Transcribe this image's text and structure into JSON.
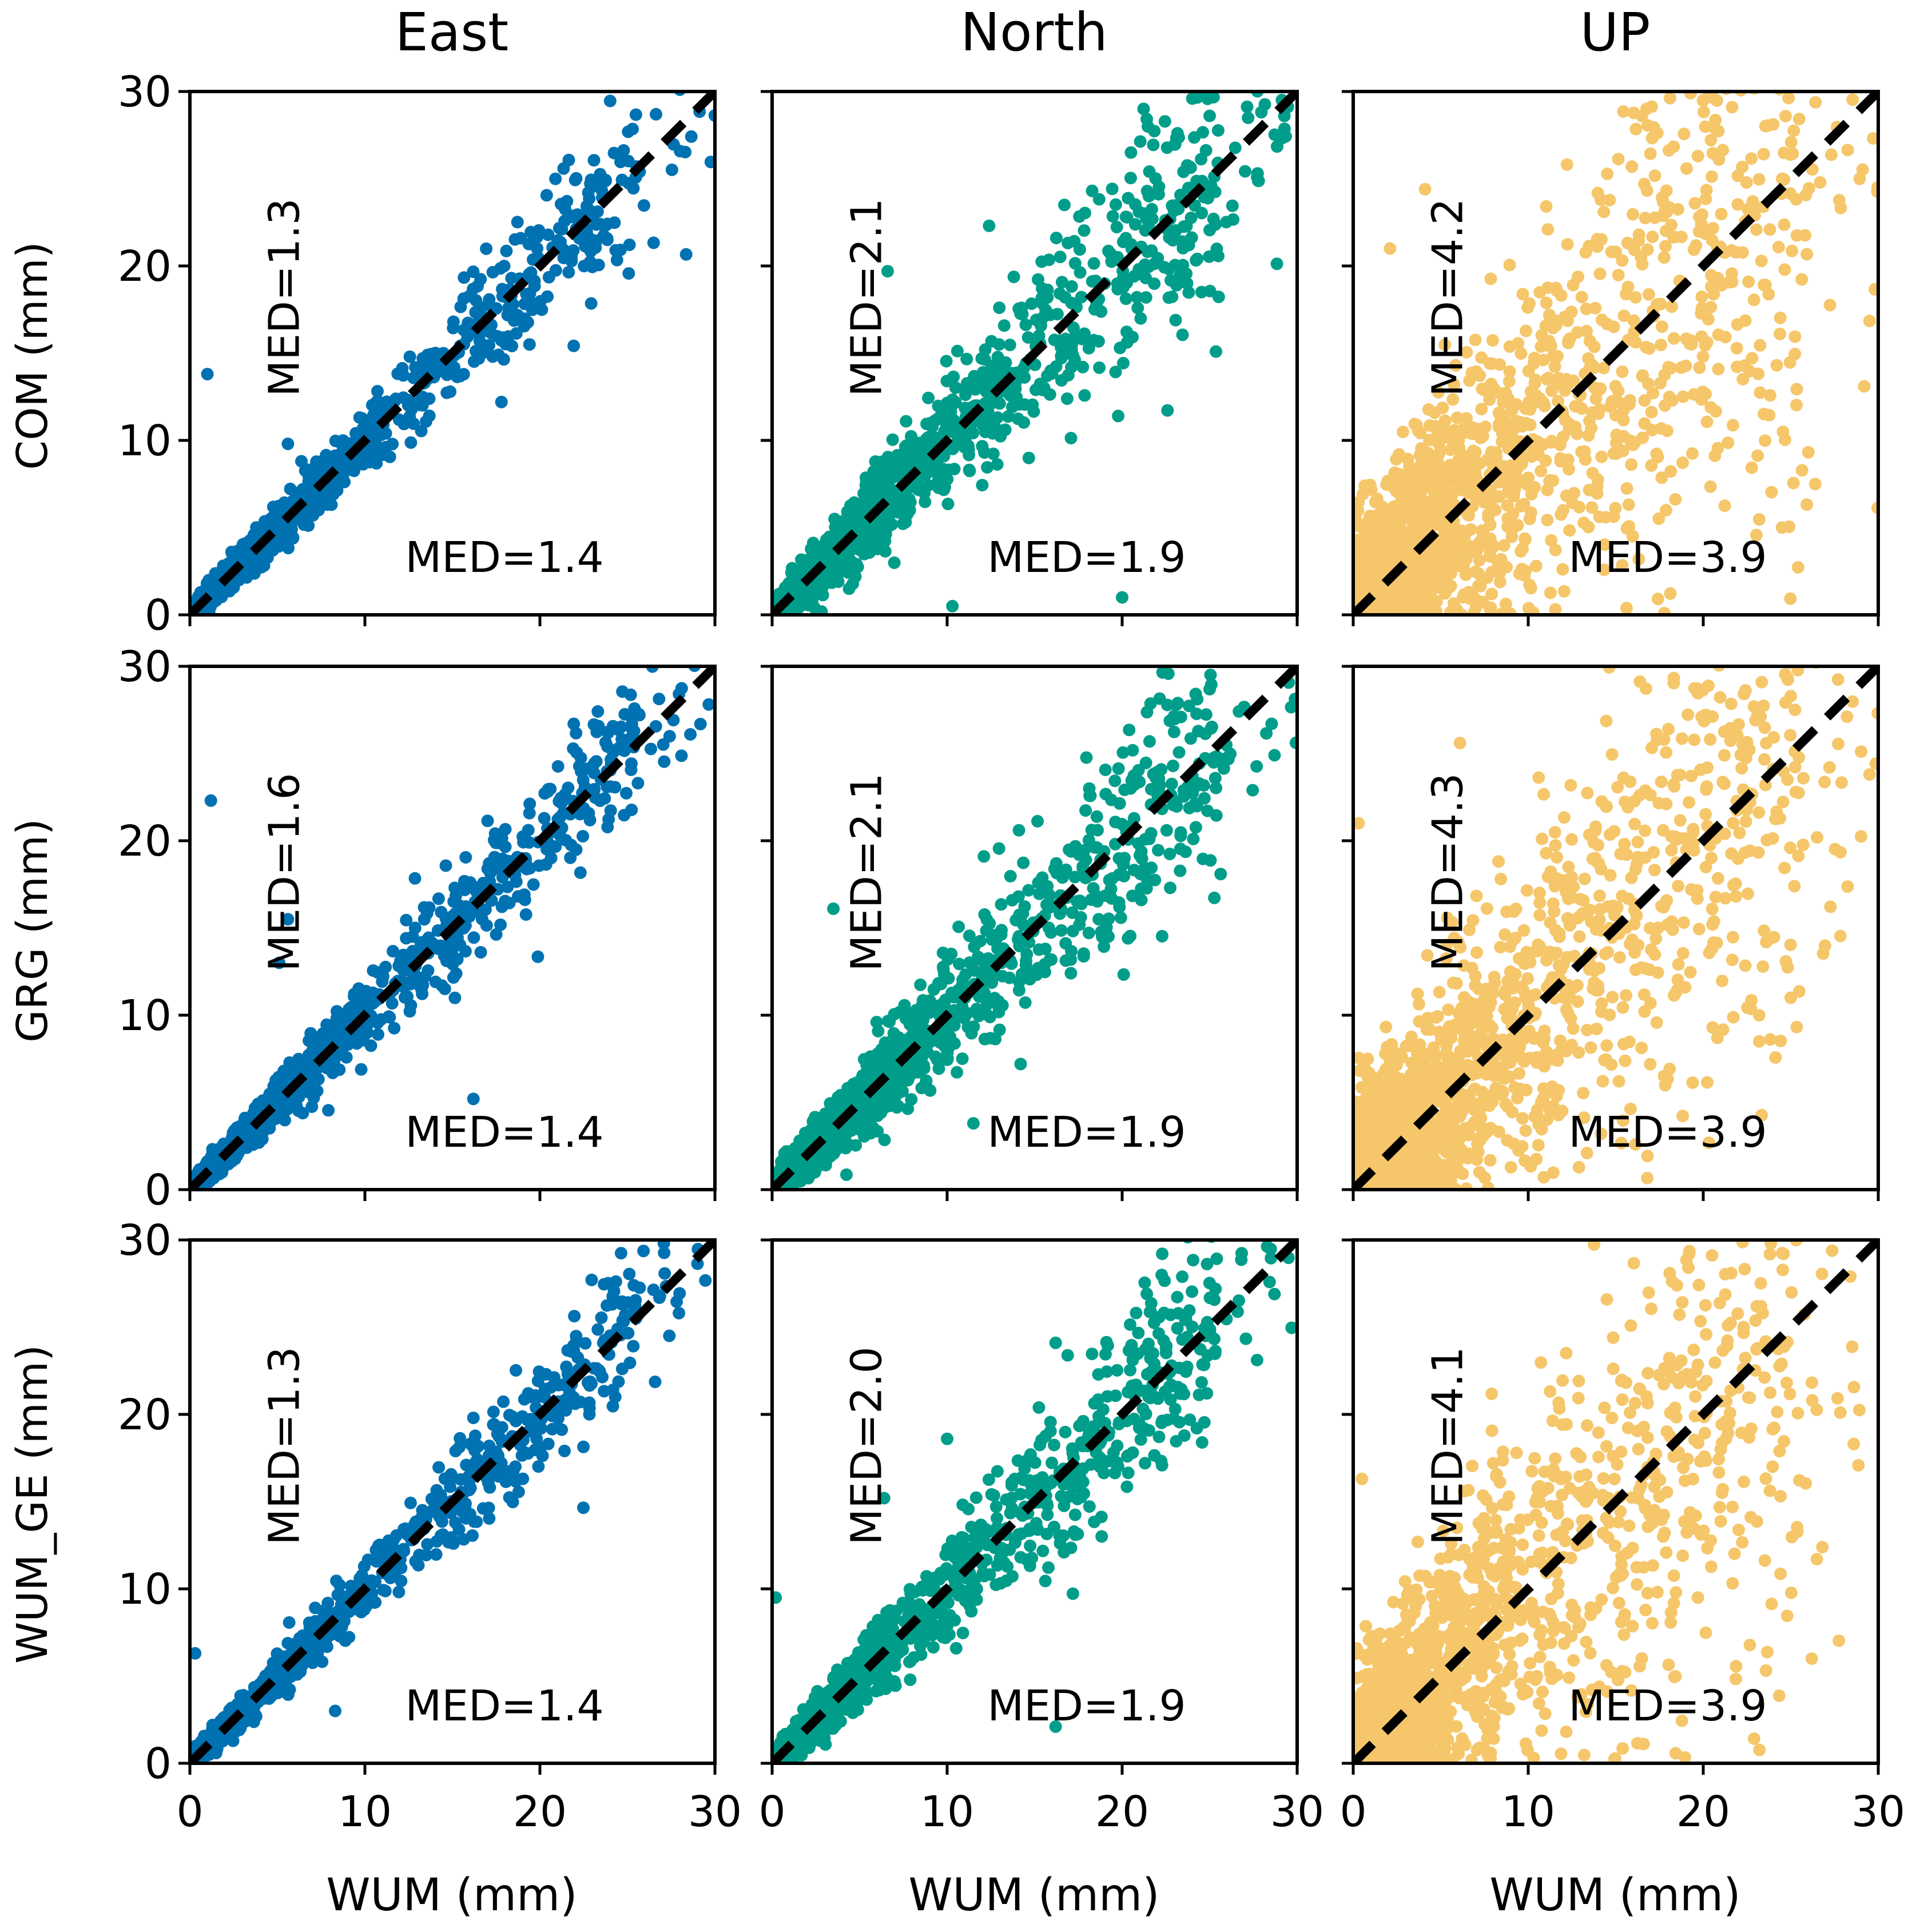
{
  "chart_data": {
    "type": "scatter",
    "layout": "3x3 grid",
    "columns": [
      {
        "title": "East",
        "color": "#0072b2"
      },
      {
        "title": "North",
        "color": "#009e8a"
      },
      {
        "title": "UP",
        "color": "#f5c76a"
      }
    ],
    "rows": [
      {
        "ylabel": "COM (mm)"
      },
      {
        "ylabel": "GRG (mm)"
      },
      {
        "ylabel": "WUM_GE (mm)"
      }
    ],
    "xlabel": "WUM (mm)",
    "xlim": [
      0,
      30
    ],
    "ylim": [
      0,
      30
    ],
    "ticks": [
      0,
      10,
      20,
      30
    ],
    "tick_labels": [
      "0",
      "10",
      "20",
      "30"
    ],
    "reference_line": {
      "slope": 1,
      "intercept": 0,
      "style": "dashed",
      "color": "#000000"
    },
    "panels": [
      {
        "row": 0,
        "col": 0,
        "med_vertical": "MED=1.3",
        "med_horizontal": "MED=1.4",
        "spread": 0.35,
        "scale": 2.6,
        "n": 1300,
        "outliers": [
          [
            1.0,
            13.8
          ],
          [
            25.7,
            25.4
          ],
          [
            21.8,
            20.6
          ],
          [
            5.6,
            9.8
          ],
          [
            17.8,
            12.2
          ]
        ]
      },
      {
        "row": 0,
        "col": 1,
        "med_vertical": "MED=2.1",
        "med_horizontal": "MED=1.9",
        "spread": 0.55,
        "scale": 3.0,
        "n": 1500,
        "outliers": [
          [
            12.4,
            22.3
          ],
          [
            16.7,
            23.5
          ],
          [
            6.6,
            19.7
          ],
          [
            20.0,
            1.0
          ],
          [
            10.3,
            0.5
          ]
        ]
      },
      {
        "row": 0,
        "col": 2,
        "med_vertical": "MED=4.2",
        "med_horizontal": "MED=3.9",
        "spread": 1.1,
        "scale": 3.2,
        "n": 1900,
        "outliers": [
          [
            29.2,
            13.1
          ],
          [
            26.4,
            7.5
          ],
          [
            2.1,
            21.0
          ],
          [
            4.1,
            24.4
          ],
          [
            24.5,
            5.0
          ]
        ]
      },
      {
        "row": 1,
        "col": 0,
        "med_vertical": "MED=1.6",
        "med_horizontal": "MED=1.4",
        "spread": 0.35,
        "scale": 2.6,
        "n": 1300,
        "outliers": [
          [
            1.2,
            22.3
          ],
          [
            25.6,
            23.3
          ],
          [
            5.6,
            15.5
          ],
          [
            16.2,
            5.2
          ],
          [
            5.1,
            13.0
          ]
        ]
      },
      {
        "row": 1,
        "col": 1,
        "med_vertical": "MED=2.1",
        "med_horizontal": "MED=1.9",
        "spread": 0.55,
        "scale": 3.0,
        "n": 1500,
        "outliers": [
          [
            12.1,
            19.1
          ],
          [
            14.1,
            20.6
          ],
          [
            3.5,
            16.1
          ],
          [
            14.2,
            7.2
          ],
          [
            11.5,
            3.8
          ]
        ]
      },
      {
        "row": 1,
        "col": 2,
        "med_vertical": "MED=4.3",
        "med_horizontal": "MED=3.9",
        "spread": 1.1,
        "scale": 3.2,
        "n": 1900,
        "outliers": [
          [
            29.5,
            23.8
          ],
          [
            25.0,
            11.0
          ],
          [
            6.1,
            25.6
          ],
          [
            0.3,
            21.0
          ],
          [
            23.2,
            8.5
          ]
        ]
      },
      {
        "row": 2,
        "col": 0,
        "med_vertical": "MED=1.3",
        "med_horizontal": "MED=1.4",
        "spread": 0.3,
        "scale": 2.5,
        "n": 1200,
        "outliers": [
          [
            25.6,
            25.7
          ],
          [
            21.8,
            22.1
          ],
          [
            16.2,
            19.8
          ],
          [
            8.3,
            3.0
          ],
          [
            0.3,
            6.3
          ]
        ]
      },
      {
        "row": 2,
        "col": 1,
        "med_vertical": "MED=2.0",
        "med_horizontal": "MED=1.9",
        "spread": 0.5,
        "scale": 3.0,
        "n": 1400,
        "outliers": [
          [
            10.0,
            18.6
          ],
          [
            16.2,
            24.1
          ],
          [
            6.4,
            15.2
          ],
          [
            16.2,
            2.1
          ],
          [
            0.2,
            9.5
          ]
        ]
      },
      {
        "row": 2,
        "col": 2,
        "med_vertical": "MED=4.1",
        "med_horizontal": "MED=3.9",
        "spread": 1.1,
        "scale": 3.2,
        "n": 1800,
        "outliers": [
          [
            18.5,
            27.4
          ],
          [
            26.2,
            6.0
          ],
          [
            0.5,
            16.3
          ],
          [
            8.0,
            17.2
          ],
          [
            28.6,
            18.3
          ]
        ]
      }
    ]
  }
}
